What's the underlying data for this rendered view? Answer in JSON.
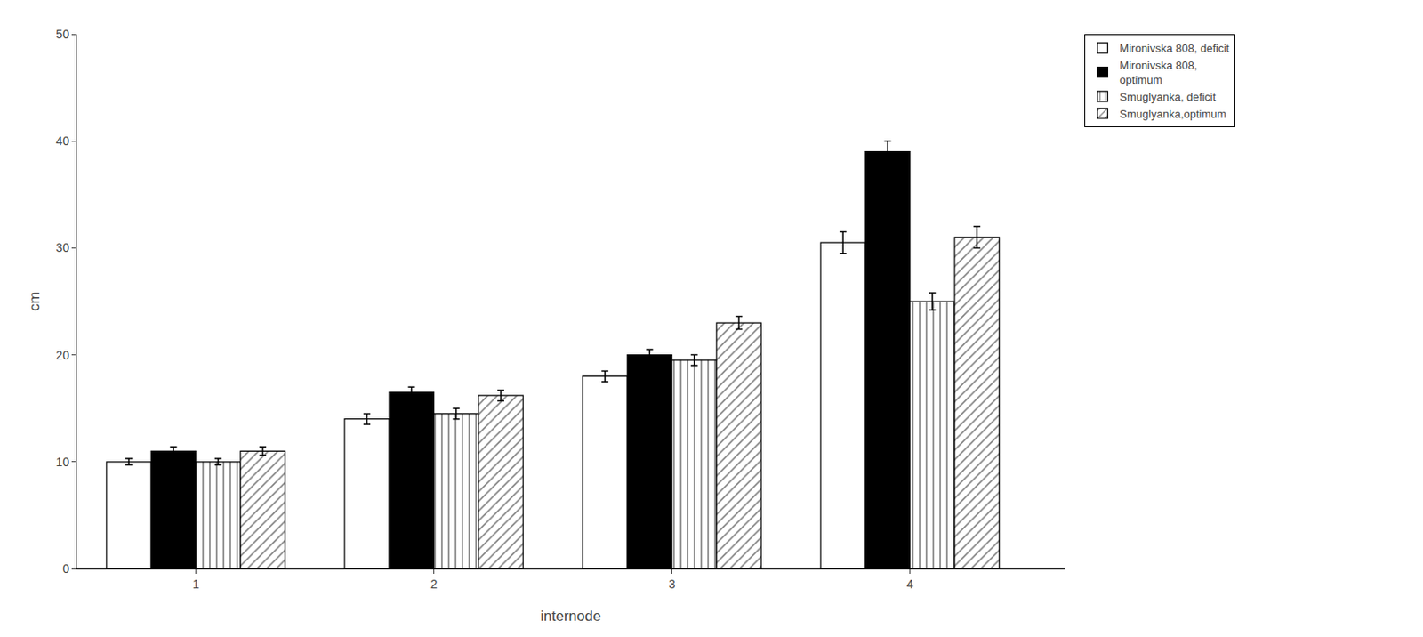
{
  "chart_data": {
    "type": "bar",
    "x": [
      1,
      2,
      3,
      4
    ],
    "series": [
      {
        "name": "Mironivska 808, deficit",
        "color": "white",
        "values": [
          10.0,
          14.0,
          18.0,
          30.5
        ],
        "errors": [
          0.3,
          0.5,
          0.5,
          1.0
        ]
      },
      {
        "name": "Mironivska 808,\noptimum",
        "color": "black",
        "values": [
          11.0,
          16.5,
          20.0,
          39.0
        ],
        "errors": [
          0.4,
          0.5,
          0.5,
          1.0
        ]
      },
      {
        "name": "Smuglyanka, deficit",
        "color": "white",
        "marker": "vertical",
        "values": [
          10.0,
          14.5,
          19.5,
          25.0
        ],
        "errors": [
          0.3,
          0.5,
          0.5,
          0.8
        ]
      },
      {
        "name": "Smuglyanka,optimum",
        "color": "white",
        "marker": "diagonal",
        "values": [
          11.0,
          16.2,
          23.0,
          31.0
        ],
        "errors": [
          0.4,
          0.5,
          0.6,
          1.0
        ]
      }
    ],
    "xlabel": "internode",
    "ylabel": "cm",
    "xlim": [
      0.5,
      4.65
    ],
    "xticks": [
      1,
      2,
      3,
      4
    ],
    "ylim": [
      0,
      50
    ],
    "yticks": [
      0,
      10,
      20,
      30,
      40,
      50
    ],
    "grid": false,
    "legend": "right"
  }
}
